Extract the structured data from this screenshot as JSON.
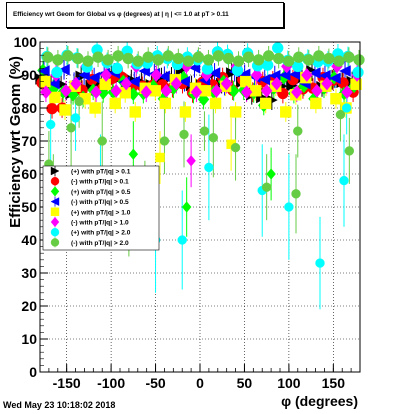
{
  "title": "Efficiency wrt Geom for Global vs φ (degrees) at | η | <= 1.0 at pT > 0.11",
  "timestamp": "Wed May 23 10:18:02 2018",
  "chart_data": {
    "type": "scatter",
    "xlabel": "φ (degrees)",
    "ylabel": "Efficiency wrt Geom (%)",
    "xlim": [
      -180,
      180
    ],
    "ylim": [
      0,
      100
    ],
    "xticks": [
      -150,
      -100,
      -50,
      0,
      50,
      100,
      150
    ],
    "yticks": [
      0,
      10,
      20,
      30,
      40,
      50,
      60,
      70,
      80,
      90,
      100
    ],
    "grid": true,
    "legend_position": "middle-left",
    "series": [
      {
        "name": "(+) with pT/|q| > 0.1",
        "color": "#000000",
        "marker": "triangle-right",
        "base": [
          90,
          87,
          86,
          85,
          89,
          88,
          88,
          89,
          90,
          88,
          89,
          87,
          88,
          90,
          91,
          88,
          87,
          89,
          88,
          90,
          89,
          84,
          82,
          83,
          86,
          88,
          89,
          90,
          87,
          88,
          89,
          88
        ]
      },
      {
        "name": "(-) with pT/|q| > 0.1",
        "color": "#ff0000",
        "marker": "circle",
        "base": [
          87,
          81,
          80,
          84,
          86,
          88,
          87,
          89,
          88,
          87,
          86,
          88,
          87,
          85,
          88,
          84,
          89,
          87,
          88,
          86,
          88,
          86,
          88,
          87,
          85,
          88,
          87,
          86,
          88,
          89,
          87,
          86
        ]
      },
      {
        "name": "(+) with pT/|q| > 0.5",
        "color": "#00ff00",
        "marker": "diamond",
        "base": [
          92,
          85,
          86,
          84,
          82,
          86,
          84,
          86,
          88,
          83,
          85,
          86,
          84,
          86,
          88,
          85,
          82,
          86,
          88,
          84,
          86,
          84,
          82,
          86,
          88,
          85,
          86,
          84,
          86,
          88,
          85,
          86
        ]
      },
      {
        "name": "(-) with pT/|q| > 0.5",
        "color": "#0000ff",
        "marker": "triangle-left",
        "base": [
          90,
          88,
          91,
          89,
          90,
          88,
          91,
          90,
          89,
          88,
          90,
          91,
          89,
          90,
          88,
          91,
          89,
          90,
          88,
          91,
          89,
          90,
          88,
          91,
          90,
          89,
          88,
          90,
          91,
          89,
          90,
          88
        ]
      },
      {
        "name": "(+) with pT/|q| > 1.0",
        "color": "#ffff00",
        "marker": "square",
        "base": [
          88,
          82,
          80,
          86,
          84,
          80,
          86,
          82,
          84,
          80,
          86,
          84,
          82,
          88,
          80,
          86,
          84,
          82,
          86,
          80,
          88,
          84,
          82,
          86,
          80,
          84,
          88,
          82,
          86,
          84,
          80,
          86
        ]
      },
      {
        "name": "(-) with pT/|q| > 1.0",
        "color": "#ff00ff",
        "marker": "diamond",
        "base": [
          86,
          90,
          84,
          88,
          92,
          86,
          90,
          84,
          88,
          92,
          86,
          90,
          84,
          88,
          92,
          86,
          90,
          84,
          88,
          92,
          86,
          90,
          84,
          88,
          92,
          86,
          90,
          84,
          88,
          92,
          86,
          90
        ]
      },
      {
        "name": "(+) with pT/|q| > 2.0",
        "color": "#00ffff",
        "marker": "circle",
        "base": [
          95,
          92,
          96,
          94,
          93,
          97,
          95,
          92,
          96,
          94,
          93,
          97,
          95,
          92,
          96,
          94,
          93,
          97,
          95,
          92,
          96,
          94,
          93,
          97,
          95,
          92,
          96,
          94,
          93,
          97,
          95,
          92
        ]
      },
      {
        "name": "(-) with pT/|q| > 2.0",
        "color": "#66cc44",
        "marker": "circle",
        "base": [
          96,
          94,
          97,
          95,
          93,
          96,
          94,
          97,
          95,
          93,
          96,
          94,
          97,
          95,
          93,
          96,
          94,
          97,
          95,
          93,
          96,
          94,
          97,
          95,
          93,
          96,
          94,
          97,
          95,
          93,
          96,
          94
        ]
      }
    ],
    "outliers": [
      {
        "series": 7,
        "x": -170,
        "y": 63,
        "err": 10
      },
      {
        "series": 7,
        "x": -165,
        "y": 58,
        "err": 8
      },
      {
        "series": 6,
        "x": -168,
        "y": 75,
        "err": 12
      },
      {
        "series": 2,
        "x": -160,
        "y": 52,
        "err": 6
      },
      {
        "series": 7,
        "x": -145,
        "y": 74,
        "err": 14
      },
      {
        "series": 6,
        "x": -140,
        "y": 77,
        "err": 10
      },
      {
        "series": 7,
        "x": -136,
        "y": 82,
        "err": 8
      },
      {
        "series": 6,
        "x": -112,
        "y": 57,
        "err": 15
      },
      {
        "series": 7,
        "x": -110,
        "y": 70,
        "err": 12
      },
      {
        "series": 7,
        "x": -80,
        "y": 47,
        "err": 12
      },
      {
        "series": 2,
        "x": -75,
        "y": 66,
        "err": 10
      },
      {
        "series": 7,
        "x": -62,
        "y": 55,
        "err": 9
      },
      {
        "series": 6,
        "x": -50,
        "y": 40,
        "err": 16
      },
      {
        "series": 4,
        "x": -45,
        "y": 65,
        "err": 8
      },
      {
        "series": 7,
        "x": -40,
        "y": 70,
        "err": 10
      },
      {
        "series": 6,
        "x": -20,
        "y": 40,
        "err": 15
      },
      {
        "series": 2,
        "x": -15,
        "y": 50,
        "err": 9
      },
      {
        "series": 7,
        "x": -18,
        "y": 72,
        "err": 10
      },
      {
        "series": 5,
        "x": -10,
        "y": 64,
        "err": 8
      },
      {
        "series": 7,
        "x": 5,
        "y": 73,
        "err": 6
      },
      {
        "series": 6,
        "x": 10,
        "y": 62,
        "err": 16
      },
      {
        "series": 7,
        "x": 15,
        "y": 71,
        "err": 12
      },
      {
        "series": 4,
        "x": 35,
        "y": 69,
        "err": 8
      },
      {
        "series": 7,
        "x": 40,
        "y": 68,
        "err": 10
      },
      {
        "series": 6,
        "x": 70,
        "y": 55,
        "err": 14
      },
      {
        "series": 7,
        "x": 75,
        "y": 56,
        "err": 10
      },
      {
        "series": 2,
        "x": 80,
        "y": 60,
        "err": 8
      },
      {
        "series": 6,
        "x": 100,
        "y": 50,
        "err": 16
      },
      {
        "series": 7,
        "x": 108,
        "y": 54,
        "err": 12
      },
      {
        "series": 7,
        "x": 110,
        "y": 73,
        "err": 8
      },
      {
        "series": 6,
        "x": 135,
        "y": 33,
        "err": 14
      },
      {
        "series": 7,
        "x": 158,
        "y": 78,
        "err": 8
      },
      {
        "series": 6,
        "x": 162,
        "y": 58,
        "err": 14
      },
      {
        "series": 7,
        "x": 168,
        "y": 67,
        "err": 10
      },
      {
        "series": 6,
        "x": 165,
        "y": 80,
        "err": 8
      }
    ]
  }
}
